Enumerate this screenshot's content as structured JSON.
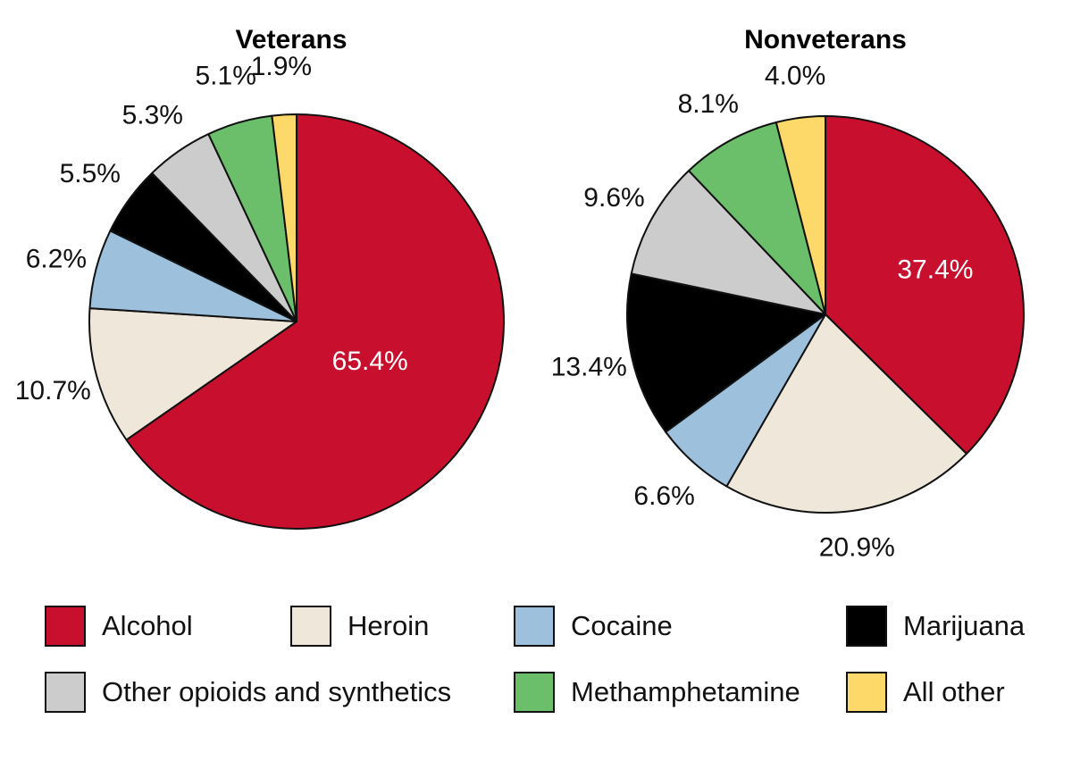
{
  "categories": [
    {
      "key": "alcohol",
      "label": "Alcohol",
      "color": "#c8102e"
    },
    {
      "key": "heroin",
      "label": "Heroin",
      "color": "#efe8da"
    },
    {
      "key": "cocaine",
      "label": "Cocaine",
      "color": "#9dc0dc"
    },
    {
      "key": "marijuana",
      "label": "Marijuana",
      "color": "#000000"
    },
    {
      "key": "other_opioids",
      "label": "Other opioids and synthetics",
      "color": "#cccccc"
    },
    {
      "key": "methamphetamine",
      "label": "Methamphetamine",
      "color": "#6bbf6b"
    },
    {
      "key": "all_other",
      "label": "All other",
      "color": "#fdd96a"
    }
  ],
  "chart_data": [
    {
      "type": "pie",
      "title": "Veterans",
      "categories": [
        "Alcohol",
        "Heroin",
        "Cocaine",
        "Marijuana",
        "Other opioids and synthetics",
        "Methamphetamine",
        "All other"
      ],
      "values": [
        65.4,
        10.7,
        6.2,
        5.5,
        5.3,
        5.1,
        1.9
      ],
      "value_labels": [
        "65.4%",
        "10.7%",
        "6.2%",
        "5.5%",
        "5.3%",
        "5.1%",
        "1.9%"
      ],
      "start": "12 o'clock",
      "direction": "clockwise"
    },
    {
      "type": "pie",
      "title": "Nonveterans",
      "categories": [
        "Alcohol",
        "Heroin",
        "Cocaine",
        "Marijuana",
        "Other opioids and synthetics",
        "Methamphetamine",
        "All other"
      ],
      "values": [
        37.4,
        20.9,
        6.6,
        13.4,
        9.6,
        8.1,
        4.0
      ],
      "value_labels": [
        "37.4%",
        "20.9%",
        "6.6%",
        "13.4%",
        "9.6%",
        "8.1%",
        "4.0%"
      ],
      "start": "12 o'clock",
      "direction": "clockwise"
    }
  ]
}
